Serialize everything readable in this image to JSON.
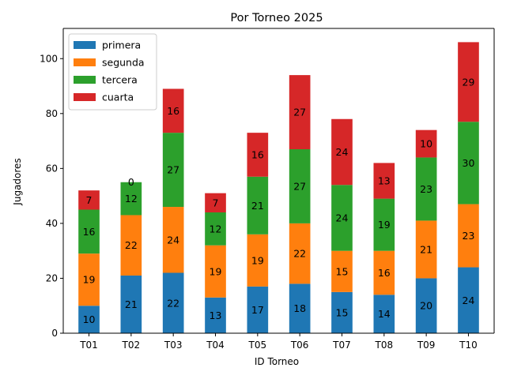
{
  "chart_data": {
    "type": "bar",
    "stacked": true,
    "title": "Por Torneo 2025",
    "xlabel": "ID Torneo",
    "ylabel": "Jugadores",
    "ylim": [
      0,
      111
    ],
    "yticks": [
      0,
      20,
      40,
      60,
      80,
      100
    ],
    "categories": [
      "T01",
      "T02",
      "T03",
      "T04",
      "T05",
      "T06",
      "T07",
      "T08",
      "T09",
      "T10"
    ],
    "series": [
      {
        "name": "primera",
        "color": "#1f77b4",
        "values": [
          10,
          21,
          22,
          13,
          17,
          18,
          15,
          14,
          20,
          24
        ]
      },
      {
        "name": "segunda",
        "color": "#ff7f0e",
        "values": [
          19,
          22,
          24,
          19,
          19,
          22,
          15,
          16,
          21,
          23
        ]
      },
      {
        "name": "tercera",
        "color": "#2ca02c",
        "values": [
          16,
          12,
          27,
          12,
          21,
          27,
          24,
          19,
          23,
          30
        ]
      },
      {
        "name": "cuarta",
        "color": "#d62728",
        "values": [
          7,
          0,
          16,
          7,
          16,
          27,
          24,
          13,
          10,
          29
        ]
      }
    ],
    "grid": false,
    "legend_position": "top-left"
  }
}
